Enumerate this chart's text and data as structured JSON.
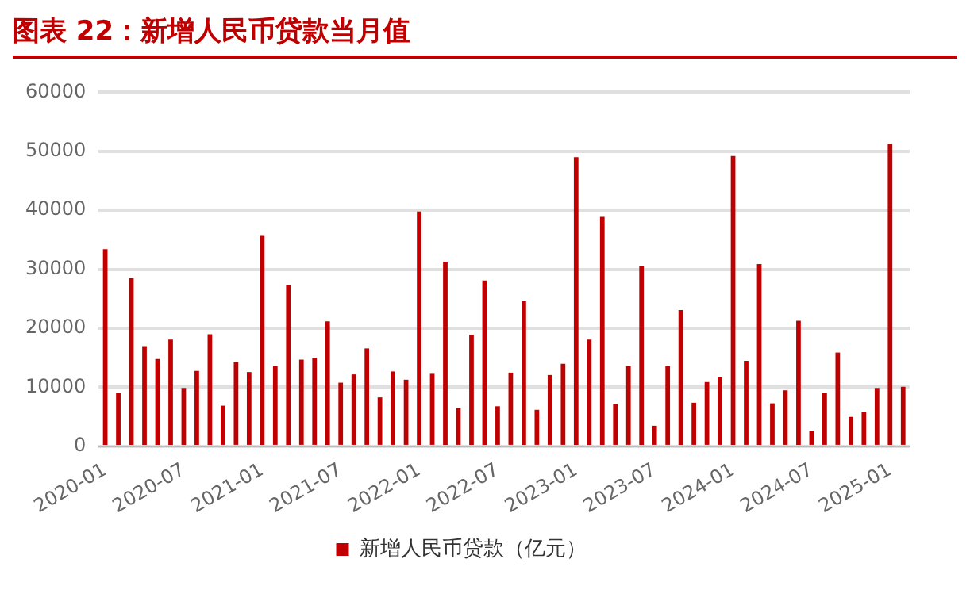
{
  "chart_data": {
    "type": "bar",
    "title": "图表 22：新增人民币贷款当月值",
    "categories": [
      "2020-01",
      null,
      null,
      null,
      null,
      null,
      "2020-07",
      null,
      null,
      null,
      null,
      null,
      "2021-01",
      null,
      null,
      null,
      null,
      null,
      "2021-07",
      null,
      null,
      null,
      null,
      null,
      "2022-01",
      null,
      null,
      null,
      null,
      null,
      "2022-07",
      null,
      null,
      null,
      null,
      null,
      "2023-01",
      null,
      null,
      null,
      null,
      null,
      "2023-07",
      null,
      null,
      null,
      null,
      null,
      "2024-01",
      null,
      null,
      null,
      null,
      null,
      "2024-07",
      null,
      null,
      null,
      null,
      null,
      "2025-01",
      null
    ],
    "series": [
      {
        "name": "新增人民币贷款（亿元）",
        "color": "#c00000",
        "values": [
          33400,
          9000,
          28500,
          17000,
          14800,
          18100,
          9900,
          12800,
          19000,
          6900,
          14300,
          12600,
          35800,
          13600,
          27300,
          14700,
          15000,
          21200,
          10800,
          12200,
          16600,
          8300,
          12700,
          11300,
          39800,
          12300,
          31300,
          6500,
          18900,
          28100,
          6800,
          12500,
          24700,
          6200,
          12100,
          14000,
          49000,
          18100,
          38900,
          7200,
          13600,
          30500,
          3500,
          13600,
          23100,
          7400,
          10900,
          11700,
          49200,
          14500,
          30900,
          7300,
          9500,
          21300,
          2600,
          9000,
          15900,
          5000,
          5800,
          9900,
          51300,
          10100
        ]
      }
    ],
    "ylim": [
      0,
      60000
    ],
    "yticks": [
      0,
      10000,
      20000,
      30000,
      40000,
      50000,
      60000
    ],
    "grid": "y",
    "legend": "bottom"
  }
}
